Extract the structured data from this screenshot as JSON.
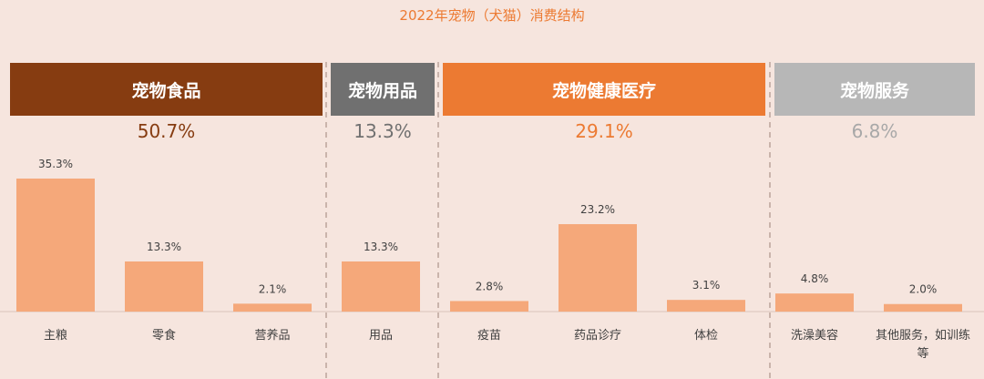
{
  "title": "2022年宠物（犬猫）消费结构",
  "groups": [
    {
      "label": "宠物食品",
      "share": "50.7%",
      "color": "#863c11",
      "share_color": "#863c11"
    },
    {
      "label": "宠物用品",
      "share": "13.3%",
      "color": "#707070",
      "share_color": "#707070"
    },
    {
      "label": "宠物健康医疗",
      "share": "29.1%",
      "color": "#ec7a32",
      "share_color": "#ec7a32"
    },
    {
      "label": "宠物服务",
      "share": "6.8%",
      "color": "#b7b7b7",
      "share_color": "#a8a8a8"
    }
  ],
  "chart_data": {
    "type": "bar",
    "categories": [
      "主粮",
      "零食",
      "营养品",
      "用品",
      "疫苗",
      "药品诊疗",
      "体检",
      "洗澡美容",
      "其他服务，如训练等"
    ],
    "values": [
      35.3,
      13.3,
      2.1,
      13.3,
      2.8,
      23.2,
      3.1,
      4.8,
      2.0
    ],
    "value_labels": [
      "35.3%",
      "13.3%",
      "2.1%",
      "13.3%",
      "2.8%",
      "23.2%",
      "3.1%",
      "4.8%",
      "2.0%"
    ],
    "bar_color": "#f5a87a",
    "unit": "%"
  }
}
